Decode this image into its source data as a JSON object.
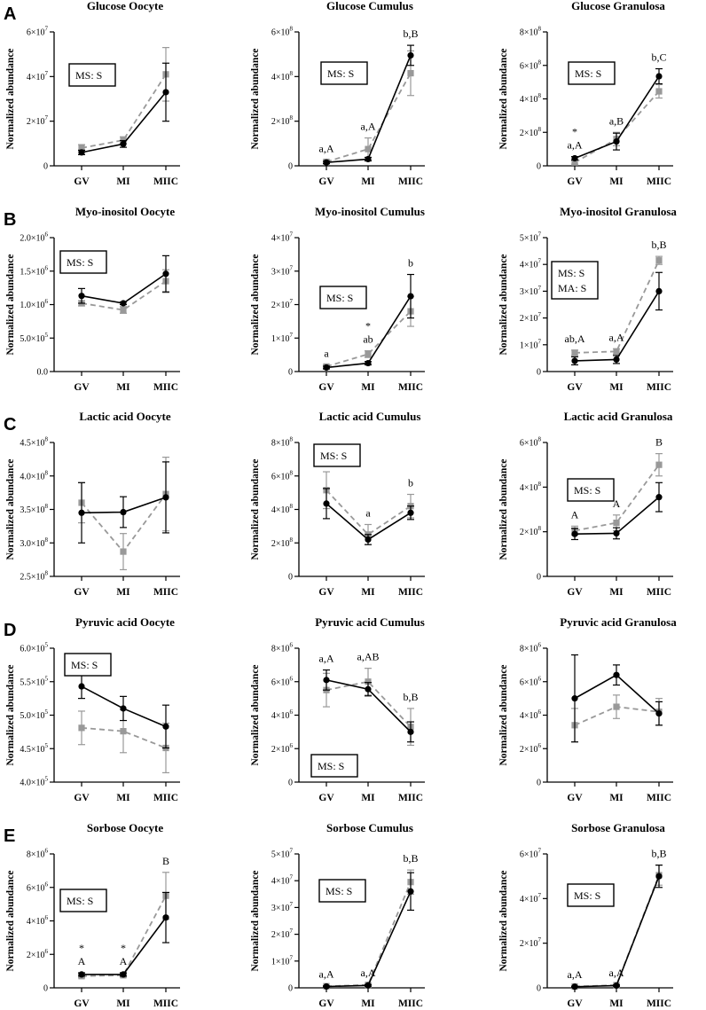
{
  "figure": {
    "y_axis_label": "Normalized abundance",
    "x_categories": [
      "GV",
      "MI",
      "MIIC"
    ]
  },
  "colors": {
    "solid": "#000000",
    "dashed": "#999999"
  },
  "chart_data": [
    {
      "panel": "A",
      "title": "Glucose Oocyte",
      "type": "line",
      "ylim": [
        0,
        60000000.0
      ],
      "yticks": [
        {
          "v": 0,
          "t": "0",
          "e": ""
        },
        {
          "v": 20000000.0,
          "t": "2×10",
          "e": "7"
        },
        {
          "v": 40000000.0,
          "t": "4×10",
          "e": "7"
        },
        {
          "v": 60000000.0,
          "t": "6×10",
          "e": "7"
        }
      ],
      "series": [
        {
          "name": "solid",
          "values": [
            6000000.0,
            9800000.0,
            33000000.0
          ],
          "err": [
            1000000.0,
            1500000.0,
            13000000.0
          ]
        },
        {
          "name": "dashed",
          "values": [
            8000000.0,
            11500000.0,
            41000000.0
          ],
          "err": [
            1500000.0,
            1500000.0,
            12000000.0
          ]
        }
      ],
      "ms": [
        "MS: S"
      ],
      "annotations": []
    },
    {
      "panel": "",
      "title": "Glucose Cumulus",
      "type": "line",
      "ylim": [
        0,
        600000000.0
      ],
      "yticks": [
        {
          "v": 0,
          "t": "0",
          "e": ""
        },
        {
          "v": 200000000.0,
          "t": "2×10",
          "e": "8"
        },
        {
          "v": 400000000.0,
          "t": "4×10",
          "e": "8"
        },
        {
          "v": 600000000.0,
          "t": "6×10",
          "e": "8"
        }
      ],
      "series": [
        {
          "name": "solid",
          "values": [
            15000000.0,
            30000000.0,
            495000000.0
          ],
          "err": [
            5000000.0,
            8000000.0,
            45000000.0
          ]
        },
        {
          "name": "dashed",
          "values": [
            18000000.0,
            75000000.0,
            415000000.0
          ],
          "err": [
            8000000.0,
            50000000.0,
            100000000.0
          ]
        }
      ],
      "ms": [
        "MS: S"
      ],
      "annotations": [
        [
          "a,A"
        ],
        [
          "a,A"
        ],
        [
          "b,B"
        ]
      ]
    },
    {
      "panel": "",
      "title": "Glucose Granulosa",
      "type": "line",
      "ylim": [
        0,
        800000000.0
      ],
      "yticks": [
        {
          "v": 0,
          "t": "0",
          "e": ""
        },
        {
          "v": 200000000.0,
          "t": "2×10",
          "e": "8"
        },
        {
          "v": 400000000.0,
          "t": "4×10",
          "e": "8"
        },
        {
          "v": 600000000.0,
          "t": "6×10",
          "e": "8"
        },
        {
          "v": 800000000.0,
          "t": "8×10",
          "e": "8"
        }
      ],
      "series": [
        {
          "name": "solid",
          "values": [
            45000000.0,
            145000000.0,
            535000000.0
          ],
          "err": [
            10000000.0,
            50000000.0,
            45000000.0
          ]
        },
        {
          "name": "dashed",
          "values": [
            20000000.0,
            160000000.0,
            445000000.0
          ],
          "err": [
            10000000.0,
            40000000.0,
            40000000.0
          ]
        }
      ],
      "ms": [
        "MS: S"
      ],
      "annotations": [
        [
          "*",
          "a,A"
        ],
        [
          "a,B"
        ],
        [
          "b,C"
        ]
      ]
    },
    {
      "panel": "B",
      "title": "Myo-inositol Oocyte",
      "type": "line",
      "ylim": [
        0,
        2000000.0
      ],
      "yticks": [
        {
          "v": 0,
          "t": "0.0",
          "e": ""
        },
        {
          "v": 500000.0,
          "t": "5.0×10",
          "e": "5"
        },
        {
          "v": 1000000.0,
          "t": "1.0×10",
          "e": "6"
        },
        {
          "v": 1500000.0,
          "t": "1.5×10",
          "e": "6"
        },
        {
          "v": 2000000.0,
          "t": "2.0×10",
          "e": "6"
        }
      ],
      "series": [
        {
          "name": "solid",
          "values": [
            1130000.0,
            1020000.0,
            1460000.0
          ],
          "err": [
            110000.0,
            20000.0,
            270000.0
          ]
        },
        {
          "name": "dashed",
          "values": [
            1020000.0,
            920000.0,
            1350000.0
          ],
          "err": [
            40000.0,
            50000.0,
            170000.0
          ]
        }
      ],
      "ms": [
        "MS: S"
      ],
      "annotations": []
    },
    {
      "panel": "",
      "title": "Myo-inositol Cumulus",
      "type": "line",
      "ylim": [
        0,
        40000000.0
      ],
      "yticks": [
        {
          "v": 0,
          "t": "0",
          "e": ""
        },
        {
          "v": 10000000.0,
          "t": "1×10",
          "e": "7"
        },
        {
          "v": 20000000.0,
          "t": "2×10",
          "e": "7"
        },
        {
          "v": 30000000.0,
          "t": "3×10",
          "e": "7"
        },
        {
          "v": 40000000.0,
          "t": "4×10",
          "e": "7"
        }
      ],
      "series": [
        {
          "name": "solid",
          "values": [
            1200000.0,
            2500000.0,
            22500000.0
          ],
          "err": [
            400000.0,
            500000.0,
            6500000.0
          ]
        },
        {
          "name": "dashed",
          "values": [
            1500000.0,
            5200000.0,
            18000000.0
          ],
          "err": [
            500000.0,
            1000000.0,
            4500000.0
          ]
        }
      ],
      "ms": [
        "MS: S"
      ],
      "annotations": [
        [
          "a"
        ],
        [
          "*",
          "ab"
        ],
        [
          "b"
        ]
      ]
    },
    {
      "panel": "",
      "title": "Myo-inositol Granulosa",
      "type": "line",
      "ylim": [
        0,
        50000000.0
      ],
      "yticks": [
        {
          "v": 0,
          "t": "0",
          "e": ""
        },
        {
          "v": 10000000.0,
          "t": "1×10",
          "e": "7"
        },
        {
          "v": 20000000.0,
          "t": "2×10",
          "e": "7"
        },
        {
          "v": 30000000.0,
          "t": "3×10",
          "e": "7"
        },
        {
          "v": 40000000.0,
          "t": "4×10",
          "e": "7"
        },
        {
          "v": 50000000.0,
          "t": "5×10",
          "e": "7"
        }
      ],
      "series": [
        {
          "name": "solid",
          "values": [
            4000000.0,
            4500000.0,
            30000000.0
          ],
          "err": [
            1500000.0,
            1500000.0,
            7000000.0
          ]
        },
        {
          "name": "dashed",
          "values": [
            7000000.0,
            7500000.0,
            41500000.0
          ],
          "err": [
            1000000.0,
            1000000.0,
            1500000.0
          ]
        }
      ],
      "ms": [
        "MS: S",
        "MA: S"
      ],
      "annotations": [
        [
          "ab,A"
        ],
        [
          "a,A"
        ],
        [
          "b,B"
        ]
      ]
    },
    {
      "panel": "C",
      "title": "Lactic acid Oocyte",
      "type": "line",
      "ylim": [
        250000000.0,
        450000000.0
      ],
      "yticks": [
        {
          "v": 250000000.0,
          "t": "2.5×10",
          "e": "8"
        },
        {
          "v": 300000000.0,
          "t": "3.0×10",
          "e": "8"
        },
        {
          "v": 350000000.0,
          "t": "3.5×10",
          "e": "8"
        },
        {
          "v": 400000000.0,
          "t": "4.0×10",
          "e": "8"
        },
        {
          "v": 450000000.0,
          "t": "4.5×10",
          "e": "8"
        }
      ],
      "series": [
        {
          "name": "solid",
          "values": [
            345000000.0,
            346000000.0,
            368000000.0
          ],
          "err": [
            45000000.0,
            23000000.0,
            53000000.0
          ]
        },
        {
          "name": "dashed",
          "values": [
            360000000.0,
            287000000.0,
            373000000.0
          ],
          "err": [
            30000000.0,
            27000000.0,
            55000000.0
          ]
        }
      ],
      "ms": [],
      "annotations": []
    },
    {
      "panel": "",
      "title": "Lactic acid Cumulus",
      "type": "line",
      "ylim": [
        0,
        800000000.0
      ],
      "yticks": [
        {
          "v": 0,
          "t": "0",
          "e": ""
        },
        {
          "v": 200000000.0,
          "t": "2×10",
          "e": "8"
        },
        {
          "v": 400000000.0,
          "t": "4×10",
          "e": "8"
        },
        {
          "v": 600000000.0,
          "t": "6×10",
          "e": "8"
        },
        {
          "v": 800000000.0,
          "t": "8×10",
          "e": "8"
        }
      ],
      "series": [
        {
          "name": "solid",
          "values": [
            435000000.0,
            220000000.0,
            380000000.0
          ],
          "err": [
            90000000.0,
            30000000.0,
            40000000.0
          ]
        },
        {
          "name": "dashed",
          "values": [
            515000000.0,
            250000000.0,
            420000000.0
          ],
          "err": [
            110000000.0,
            60000000.0,
            70000000.0
          ]
        }
      ],
      "ms": [
        "MS: S"
      ],
      "annotations": [
        [
          "ab"
        ],
        [
          "a"
        ],
        [
          "b"
        ]
      ]
    },
    {
      "panel": "",
      "title": "Lactic acid Granulosa",
      "type": "line",
      "ylim": [
        0,
        600000000.0
      ],
      "yticks": [
        {
          "v": 0,
          "t": "0",
          "e": ""
        },
        {
          "v": 200000000.0,
          "t": "2×10",
          "e": "8"
        },
        {
          "v": 400000000.0,
          "t": "4×10",
          "e": "8"
        },
        {
          "v": 600000000.0,
          "t": "6×10",
          "e": "8"
        }
      ],
      "series": [
        {
          "name": "solid",
          "values": [
            190000000.0,
            193000000.0,
            355000000.0
          ],
          "err": [
            25000000.0,
            25000000.0,
            65000000.0
          ]
        },
        {
          "name": "dashed",
          "values": [
            205000000.0,
            240000000.0,
            500000000.0
          ],
          "err": [
            20000000.0,
            35000000.0,
            50000000.0
          ]
        }
      ],
      "ms": [
        "MS: S"
      ],
      "annotations": [
        [
          "A"
        ],
        [
          "A"
        ],
        [
          "B"
        ]
      ]
    },
    {
      "panel": "D",
      "title": "Pyruvic acid Oocyte",
      "type": "line",
      "ylim": [
        400000.0,
        600000.0
      ],
      "yticks": [
        {
          "v": 400000.0,
          "t": "4.0×10",
          "e": "5"
        },
        {
          "v": 450000.0,
          "t": "4.5×10",
          "e": "5"
        },
        {
          "v": 500000.0,
          "t": "5.0×10",
          "e": "5"
        },
        {
          "v": 550000.0,
          "t": "5.5×10",
          "e": "5"
        },
        {
          "v": 600000.0,
          "t": "6.0×10",
          "e": "5"
        }
      ],
      "series": [
        {
          "name": "solid",
          "values": [
            543000.0,
            510000.0,
            483000.0
          ],
          "err": [
            18000.0,
            18000.0,
            32000.0
          ]
        },
        {
          "name": "dashed",
          "values": [
            481000.0,
            476000.0,
            451000.0
          ],
          "err": [
            25000.0,
            32000.0,
            37000.0
          ]
        }
      ],
      "ms": [
        "MS: S"
      ],
      "annotations": []
    },
    {
      "panel": "",
      "title": "Pyruvic acid Cumulus",
      "type": "line",
      "ylim": [
        0,
        8000000.0
      ],
      "yticks": [
        {
          "v": 0,
          "t": "0",
          "e": ""
        },
        {
          "v": 2000000.0,
          "t": "2×10",
          "e": "6"
        },
        {
          "v": 4000000.0,
          "t": "4×10",
          "e": "6"
        },
        {
          "v": 6000000.0,
          "t": "6×10",
          "e": "6"
        },
        {
          "v": 8000000.0,
          "t": "8×10",
          "e": "6"
        }
      ],
      "series": [
        {
          "name": "solid",
          "values": [
            6100000.0,
            5550000.0,
            3000000.0
          ],
          "err": [
            600000.0,
            400000.0,
            600000.0
          ]
        },
        {
          "name": "dashed",
          "values": [
            5500000.0,
            6000000.0,
            3300000.0
          ],
          "err": [
            1000000.0,
            800000.0,
            1100000.0
          ]
        }
      ],
      "ms": [
        "MS: S"
      ],
      "annotations": [
        [
          "a,A"
        ],
        [
          "a,AB"
        ],
        [
          "b,B"
        ]
      ]
    },
    {
      "panel": "",
      "title": "Pyruvic acid Granulosa",
      "type": "line",
      "ylim": [
        0,
        8000000.0
      ],
      "yticks": [
        {
          "v": 0,
          "t": "0",
          "e": ""
        },
        {
          "v": 2000000.0,
          "t": "2×10",
          "e": "6"
        },
        {
          "v": 4000000.0,
          "t": "4×10",
          "e": "6"
        },
        {
          "v": 6000000.0,
          "t": "6×10",
          "e": "6"
        },
        {
          "v": 8000000.0,
          "t": "8×10",
          "e": "6"
        }
      ],
      "series": [
        {
          "name": "solid",
          "values": [
            5000000.0,
            6400000.0,
            4100000.0
          ],
          "err": [
            2600000.0,
            600000.0,
            700000.0
          ]
        },
        {
          "name": "dashed",
          "values": [
            3400000.0,
            4500000.0,
            4200000.0
          ],
          "err": [
            1000000.0,
            700000.0,
            800000.0
          ]
        }
      ],
      "ms": [],
      "annotations": []
    },
    {
      "panel": "E",
      "title": "Sorbose Oocyte",
      "type": "line",
      "ylim": [
        0,
        8000000.0
      ],
      "yticks": [
        {
          "v": 0,
          "t": "0",
          "e": ""
        },
        {
          "v": 2000000.0,
          "t": "2×10",
          "e": "6"
        },
        {
          "v": 4000000.0,
          "t": "4×10",
          "e": "6"
        },
        {
          "v": 6000000.0,
          "t": "6×10",
          "e": "6"
        },
        {
          "v": 8000000.0,
          "t": "8×10",
          "e": "6"
        }
      ],
      "series": [
        {
          "name": "solid",
          "values": [
            800000.0,
            800000.0,
            4200000.0
          ],
          "err": [
            100000.0,
            100000.0,
            1500000.0
          ]
        },
        {
          "name": "dashed",
          "values": [
            700000.0,
            750000.0,
            5500000.0
          ],
          "err": [
            100000.0,
            100000.0,
            1400000.0
          ]
        }
      ],
      "ms": [
        "MS: S"
      ],
      "annotations": [
        [
          "*",
          "A"
        ],
        [
          "*",
          "A"
        ],
        [
          "B"
        ]
      ]
    },
    {
      "panel": "",
      "title": "Sorbose Cumulus",
      "type": "line",
      "ylim": [
        0,
        50000000.0
      ],
      "yticks": [
        {
          "v": 0,
          "t": "0",
          "e": ""
        },
        {
          "v": 10000000.0,
          "t": "1×10",
          "e": "7"
        },
        {
          "v": 20000000.0,
          "t": "2×10",
          "e": "7"
        },
        {
          "v": 30000000.0,
          "t": "3×10",
          "e": "7"
        },
        {
          "v": 40000000.0,
          "t": "4×10",
          "e": "7"
        },
        {
          "v": 50000000.0,
          "t": "5×10",
          "e": "7"
        }
      ],
      "series": [
        {
          "name": "solid",
          "values": [
            500000.0,
            900000.0,
            36000000.0
          ],
          "err": [
            200000.0,
            300000.0,
            7000000.0
          ]
        },
        {
          "name": "dashed",
          "values": [
            600000.0,
            1100000.0,
            39500000.0
          ],
          "err": [
            200000.0,
            300000.0,
            4500000.0
          ]
        }
      ],
      "ms": [
        "MS: S"
      ],
      "annotations": [
        [
          "a,A"
        ],
        [
          "a,A"
        ],
        [
          "b,B"
        ]
      ]
    },
    {
      "panel": "",
      "title": "Sorbose Granulosa",
      "type": "line",
      "ylim": [
        0,
        60000000.0
      ],
      "yticks": [
        {
          "v": 0,
          "t": "0",
          "e": ""
        },
        {
          "v": 20000000.0,
          "t": "2×10",
          "e": "7"
        },
        {
          "v": 40000000.0,
          "t": "4×10",
          "e": "7"
        },
        {
          "v": 60000000.0,
          "t": "6×10",
          "e": "7"
        }
      ],
      "series": [
        {
          "name": "solid",
          "values": [
            500000.0,
            1000000.0,
            50000000.0
          ],
          "err": [
            200000.0,
            300000.0,
            5000000.0
          ]
        },
        {
          "name": "dashed",
          "values": [
            600000.0,
            1200000.0,
            50500000.0
          ],
          "err": [
            200000.0,
            300000.0,
            4500000.0
          ]
        }
      ],
      "ms": [
        "MS: S"
      ],
      "annotations": [
        [
          "a,A"
        ],
        [
          "a,A"
        ],
        [
          "b,B"
        ]
      ]
    }
  ]
}
